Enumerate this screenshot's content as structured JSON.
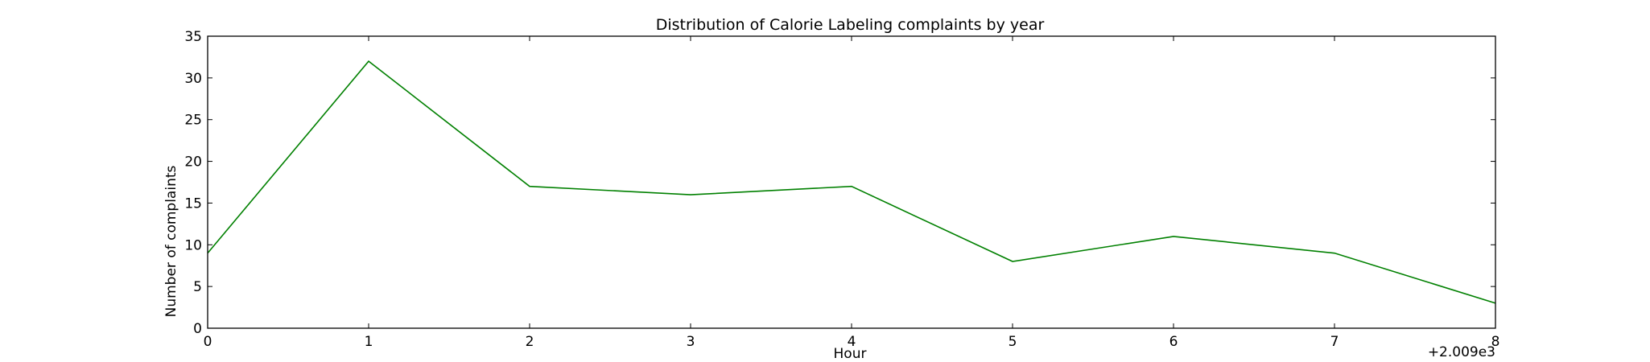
{
  "chart_data": {
    "type": "line",
    "title": "Distribution of  Calorie Labeling complaints by year",
    "xlabel": "Hour",
    "ylabel": "Number of complaints",
    "x_offset_label": "+2.009e3",
    "x": [
      0,
      1,
      2,
      3,
      4,
      5,
      6,
      7,
      8
    ],
    "x_tick_labels": [
      "0",
      "1",
      "2",
      "3",
      "4",
      "5",
      "6",
      "7",
      "8"
    ],
    "xlim": [
      0,
      8
    ],
    "ylim": [
      0,
      35
    ],
    "y_ticks": [
      0,
      5,
      10,
      15,
      20,
      25,
      30,
      35
    ],
    "grid": false,
    "series": [
      {
        "color": "#008000",
        "values": [
          9,
          32,
          17,
          16,
          17,
          8,
          11,
          9,
          3
        ]
      }
    ]
  }
}
